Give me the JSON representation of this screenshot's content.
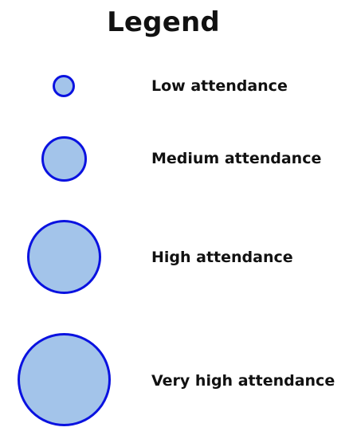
{
  "legend": {
    "title": "Legend",
    "circle_fill": "#a3c4ea",
    "circle_stroke": "#0a12e0",
    "items": [
      {
        "label": "Low attendance"
      },
      {
        "label": "Medium attendance"
      },
      {
        "label": "High attendance"
      },
      {
        "label": "Very high attendance"
      }
    ]
  }
}
